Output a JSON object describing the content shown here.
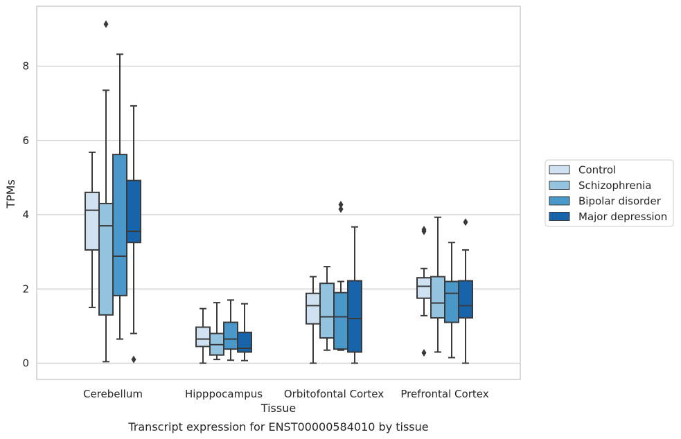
{
  "caption": "Transcript expression for ENST00000584010 by tissue",
  "chart_data": {
    "type": "boxplot",
    "xlabel": "Tissue",
    "ylabel": "TPMs",
    "ylim": [
      -0.45,
      9.6
    ],
    "yticks": [
      0,
      2,
      4,
      6,
      8
    ],
    "grid": "horizontal",
    "legend_position": "right",
    "categories": [
      "Cerebellum",
      "Hipppocampus",
      "Orbitofontal Cortex",
      "Prefrontal Cortex"
    ],
    "series": [
      {
        "name": "Control",
        "color": "#d0e1f2",
        "boxes": [
          {
            "whislo": 1.5,
            "q1": 3.05,
            "med": 4.12,
            "q3": 4.6,
            "whishi": 5.68,
            "fliers": []
          },
          {
            "whislo": 0.0,
            "q1": 0.45,
            "med": 0.65,
            "q3": 0.97,
            "whishi": 1.47,
            "fliers": []
          },
          {
            "whislo": 0.0,
            "q1": 1.06,
            "med": 1.55,
            "q3": 1.88,
            "whishi": 2.33,
            "fliers": []
          },
          {
            "whislo": 1.28,
            "q1": 1.75,
            "med": 2.07,
            "q3": 2.3,
            "whishi": 2.55,
            "fliers": [
              3.6,
              3.55,
              0.28
            ]
          }
        ]
      },
      {
        "name": "Schizophrenia",
        "color": "#94c4df",
        "boxes": [
          {
            "whislo": 0.04,
            "q1": 1.3,
            "med": 3.7,
            "q3": 4.3,
            "whishi": 7.35,
            "fliers": [
              9.13
            ]
          },
          {
            "whislo": 0.1,
            "q1": 0.22,
            "med": 0.5,
            "q3": 0.8,
            "whishi": 1.63,
            "fliers": []
          },
          {
            "whislo": 0.35,
            "q1": 0.68,
            "med": 1.25,
            "q3": 2.15,
            "whishi": 2.6,
            "fliers": []
          },
          {
            "whislo": 0.3,
            "q1": 1.22,
            "med": 1.62,
            "q3": 2.33,
            "whishi": 3.93,
            "fliers": []
          }
        ]
      },
      {
        "name": "Bipolar disorder",
        "color": "#4a98c9",
        "boxes": [
          {
            "whislo": 0.65,
            "q1": 1.82,
            "med": 2.88,
            "q3": 5.62,
            "whishi": 8.32,
            "fliers": []
          },
          {
            "whislo": 0.08,
            "q1": 0.38,
            "med": 0.65,
            "q3": 1.1,
            "whishi": 1.7,
            "fliers": []
          },
          {
            "whislo": 0.35,
            "q1": 0.38,
            "med": 1.25,
            "q3": 1.9,
            "whishi": 2.2,
            "fliers": [
              4.27,
              4.15
            ]
          },
          {
            "whislo": 0.15,
            "q1": 1.1,
            "med": 1.88,
            "q3": 2.2,
            "whishi": 3.25,
            "fliers": []
          }
        ]
      },
      {
        "name": "Major depression",
        "color": "#1764ab",
        "boxes": [
          {
            "whislo": 0.8,
            "q1": 3.25,
            "med": 3.55,
            "q3": 4.92,
            "whishi": 6.93,
            "fliers": [
              0.1
            ]
          },
          {
            "whislo": 0.07,
            "q1": 0.3,
            "med": 0.4,
            "q3": 0.83,
            "whishi": 1.6,
            "fliers": []
          },
          {
            "whislo": 0.0,
            "q1": 0.3,
            "med": 1.2,
            "q3": 2.22,
            "whishi": 3.67,
            "fliers": []
          },
          {
            "whislo": 0.0,
            "q1": 1.22,
            "med": 1.55,
            "q3": 2.22,
            "whishi": 3.05,
            "fliers": [
              3.8
            ]
          }
        ]
      }
    ]
  }
}
